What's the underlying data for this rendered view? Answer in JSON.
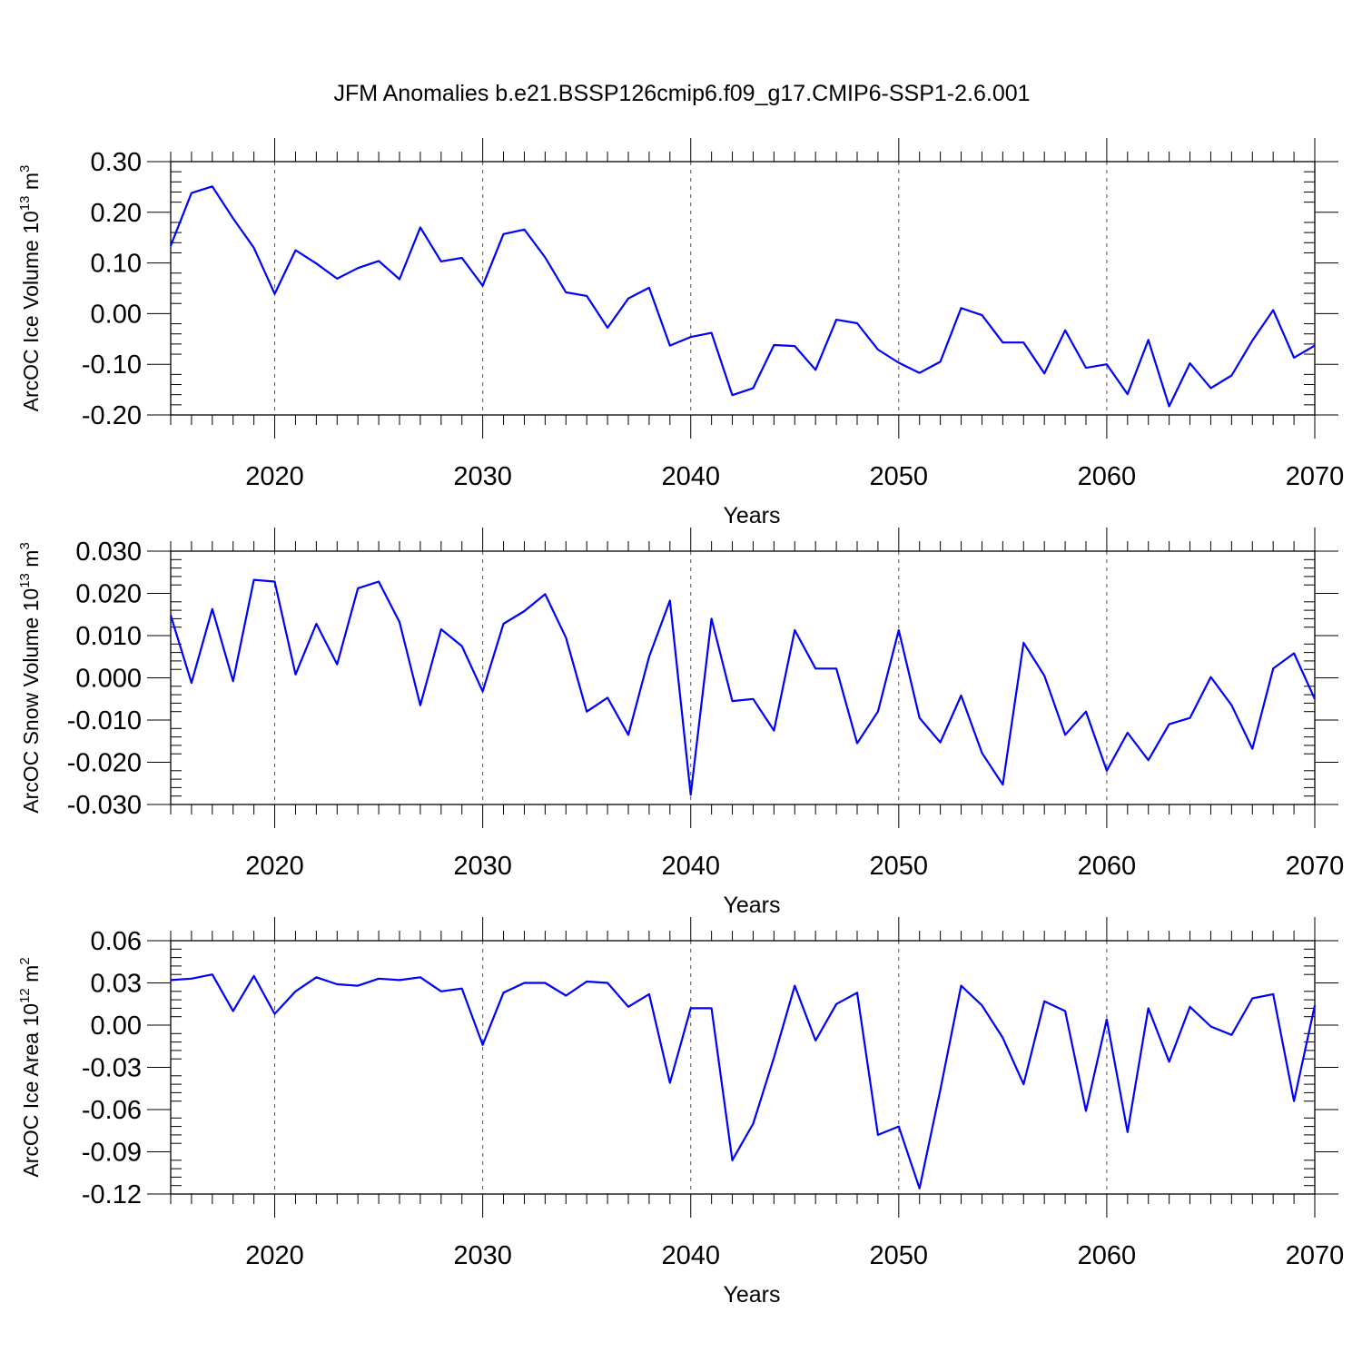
{
  "figure": {
    "title": "JFM Anomalies b.e21.BSSP126cmip6.f09_g17.CMIP6-SSP1-2.6.001",
    "line_color": "#0000ff"
  },
  "chart_data": [
    {
      "type": "line",
      "title": "",
      "xlabel": "Years",
      "ylabel": {
        "main": "ArcOC Ice Volume 10",
        "sup1": "13",
        "unit": " m",
        "sup2": "3"
      },
      "xlim": [
        2015,
        2070
      ],
      "ylim": [
        -0.2,
        0.3
      ],
      "x_ticks": [
        2020,
        2030,
        2040,
        2050,
        2060,
        2070
      ],
      "x_tick_labels": [
        "2020",
        "2030",
        "2040",
        "2050",
        "2060",
        "2070"
      ],
      "y_ticks": [
        0.3,
        0.2,
        0.1,
        0.0,
        -0.1,
        -0.2
      ],
      "y_tick_labels": [
        "0.30",
        "0.20",
        "0.10",
        "0.00",
        "-0.10",
        "-0.20"
      ],
      "grid": "vertical dashed at major x ticks",
      "x": [
        2015,
        2016,
        2017,
        2018,
        2019,
        2020,
        2021,
        2022,
        2023,
        2024,
        2025,
        2026,
        2027,
        2028,
        2029,
        2030,
        2031,
        2032,
        2033,
        2034,
        2035,
        2036,
        2037,
        2038,
        2039,
        2040,
        2041,
        2042,
        2043,
        2044,
        2045,
        2046,
        2047,
        2048,
        2049,
        2050,
        2051,
        2052,
        2053,
        2054,
        2055,
        2056,
        2057,
        2058,
        2059,
        2060,
        2061,
        2062,
        2063,
        2064,
        2065,
        2066,
        2067,
        2068,
        2069,
        2070
      ],
      "series": [
        {
          "values": [
            0.134,
            0.238,
            0.251,
            0.188,
            0.13,
            0.039,
            0.125,
            0.099,
            0.069,
            0.09,
            0.104,
            0.068,
            0.17,
            0.103,
            0.11,
            0.055,
            0.157,
            0.166,
            0.111,
            0.042,
            0.035,
            -0.028,
            0.03,
            0.051,
            -0.063,
            -0.046,
            -0.038,
            -0.161,
            -0.147,
            -0.062,
            -0.064,
            -0.111,
            -0.012,
            -0.019,
            -0.071,
            -0.097,
            -0.117,
            -0.095,
            0.011,
            -0.003,
            -0.057,
            -0.057,
            -0.118,
            -0.033,
            -0.107,
            -0.1,
            -0.159,
            -0.052,
            -0.183,
            -0.098,
            -0.147,
            -0.122,
            -0.053,
            0.007,
            -0.087,
            -0.063
          ]
        }
      ]
    },
    {
      "type": "line",
      "title": "",
      "xlabel": "Years",
      "ylabel": {
        "main": "ArcOC Snow Volume 10",
        "sup1": "13",
        "unit": " m",
        "sup2": "3"
      },
      "xlim": [
        2015,
        2070
      ],
      "ylim": [
        -0.03,
        0.03
      ],
      "x_ticks": [
        2020,
        2030,
        2040,
        2050,
        2060,
        2070
      ],
      "x_tick_labels": [
        "2020",
        "2030",
        "2040",
        "2050",
        "2060",
        "2070"
      ],
      "y_ticks": [
        0.03,
        0.02,
        0.01,
        0.0,
        -0.01,
        -0.02,
        -0.03
      ],
      "y_tick_labels": [
        "0.030",
        "0.020",
        "0.010",
        "0.000",
        "-0.010",
        "-0.020",
        "-0.030"
      ],
      "grid": "vertical dashed at major x ticks",
      "x": [
        2015,
        2016,
        2017,
        2018,
        2019,
        2020,
        2021,
        2022,
        2023,
        2024,
        2025,
        2026,
        2027,
        2028,
        2029,
        2030,
        2031,
        2032,
        2033,
        2034,
        2035,
        2036,
        2037,
        2038,
        2039,
        2040,
        2041,
        2042,
        2043,
        2044,
        2045,
        2046,
        2047,
        2048,
        2049,
        2050,
        2051,
        2052,
        2053,
        2054,
        2055,
        2056,
        2057,
        2058,
        2059,
        2060,
        2061,
        2062,
        2063,
        2064,
        2065,
        2066,
        2067,
        2068,
        2069,
        2070
      ],
      "series": [
        {
          "values": [
            0.0148,
            -0.0012,
            0.0163,
            -0.0008,
            0.0232,
            0.0228,
            0.0008,
            0.0128,
            0.0032,
            0.0212,
            0.0228,
            0.0132,
            -0.0065,
            0.0115,
            0.0075,
            -0.0032,
            0.0128,
            0.0158,
            0.0198,
            0.0095,
            -0.008,
            -0.0047,
            -0.0135,
            0.005,
            0.0183,
            -0.0277,
            0.014,
            -0.0055,
            -0.005,
            -0.0125,
            0.0113,
            0.0022,
            0.0022,
            -0.0155,
            -0.008,
            0.0113,
            -0.0095,
            -0.0153,
            -0.0042,
            -0.0178,
            -0.0253,
            0.0083,
            0.0005,
            -0.0135,
            -0.008,
            -0.022,
            -0.013,
            -0.0195,
            -0.011,
            -0.0095,
            0.0002,
            -0.0065,
            -0.0168,
            0.0022,
            0.0058,
            -0.005
          ]
        }
      ]
    },
    {
      "type": "line",
      "title": "",
      "xlabel": "Years",
      "ylabel": {
        "main": "ArcOC Ice Area 10",
        "sup1": "12",
        "unit": " m",
        "sup2": "2"
      },
      "xlim": [
        2015,
        2070
      ],
      "ylim": [
        -0.12,
        0.06
      ],
      "x_ticks": [
        2020,
        2030,
        2040,
        2050,
        2060,
        2070
      ],
      "x_tick_labels": [
        "2020",
        "2030",
        "2040",
        "2050",
        "2060",
        "2070"
      ],
      "y_ticks": [
        0.06,
        0.03,
        0.0,
        -0.03,
        -0.06,
        -0.09,
        -0.12
      ],
      "y_tick_labels": [
        "0.06",
        "0.03",
        "0.00",
        "-0.03",
        "-0.06",
        "-0.09",
        "-0.12"
      ],
      "grid": "vertical dashed at major x ticks",
      "x": [
        2015,
        2016,
        2017,
        2018,
        2019,
        2020,
        2021,
        2022,
        2023,
        2024,
        2025,
        2026,
        2027,
        2028,
        2029,
        2030,
        2031,
        2032,
        2033,
        2034,
        2035,
        2036,
        2037,
        2038,
        2039,
        2040,
        2041,
        2042,
        2043,
        2044,
        2045,
        2046,
        2047,
        2048,
        2049,
        2050,
        2051,
        2052,
        2053,
        2054,
        2055,
        2056,
        2057,
        2058,
        2059,
        2060,
        2061,
        2062,
        2063,
        2064,
        2065,
        2066,
        2067,
        2068,
        2069,
        2070
      ],
      "series": [
        {
          "values": [
            0.032,
            0.033,
            0.036,
            0.01,
            0.035,
            0.008,
            0.024,
            0.034,
            0.029,
            0.028,
            0.033,
            0.032,
            0.034,
            0.024,
            0.026,
            -0.014,
            0.023,
            0.03,
            0.03,
            0.021,
            0.031,
            0.03,
            0.013,
            0.022,
            -0.041,
            0.012,
            0.012,
            -0.096,
            -0.07,
            -0.023,
            0.028,
            -0.011,
            0.015,
            0.023,
            -0.078,
            -0.072,
            -0.116,
            -0.046,
            0.028,
            0.014,
            -0.009,
            -0.042,
            0.017,
            0.01,
            -0.061,
            0.004,
            -0.076,
            0.012,
            -0.026,
            0.013,
            -0.001,
            -0.007,
            0.019,
            0.022,
            -0.054,
            0.014
          ]
        }
      ]
    }
  ]
}
